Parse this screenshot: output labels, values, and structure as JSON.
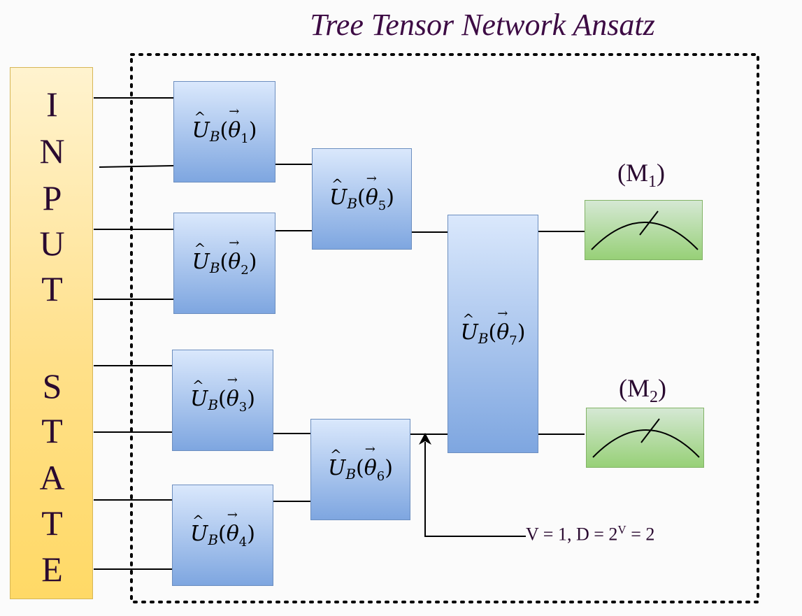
{
  "title": "Tree Tensor Network Ansatz",
  "input_block": {
    "letters": [
      "I",
      "N",
      "P",
      "U",
      "T",
      "S",
      "T",
      "A",
      "T",
      "E"
    ]
  },
  "gates": [
    {
      "op": "U",
      "op_sub": "B",
      "param": "θ",
      "index": "1"
    },
    {
      "op": "U",
      "op_sub": "B",
      "param": "θ",
      "index": "2"
    },
    {
      "op": "U",
      "op_sub": "B",
      "param": "θ",
      "index": "3"
    },
    {
      "op": "U",
      "op_sub": "B",
      "param": "θ",
      "index": "4"
    },
    {
      "op": "U",
      "op_sub": "B",
      "param": "θ",
      "index": "5"
    },
    {
      "op": "U",
      "op_sub": "B",
      "param": "θ",
      "index": "6"
    },
    {
      "op": "U",
      "op_sub": "B",
      "param": "θ",
      "index": "7"
    }
  ],
  "measurements": [
    {
      "prefix": "(M",
      "sub": "1",
      "suffix": ")"
    },
    {
      "prefix": "(M",
      "sub": "2",
      "suffix": ")"
    }
  ],
  "annotation": {
    "part1": "V = 1, D = 2",
    "sup": "V",
    "part2": " = 2"
  },
  "colors": {
    "title": "#3d0b44",
    "gate_fill_top": "#dae8fc",
    "gate_fill_bottom": "#7ea6e0",
    "meter_fill": "#d5e8d4",
    "input_fill": "#ffe08a"
  }
}
